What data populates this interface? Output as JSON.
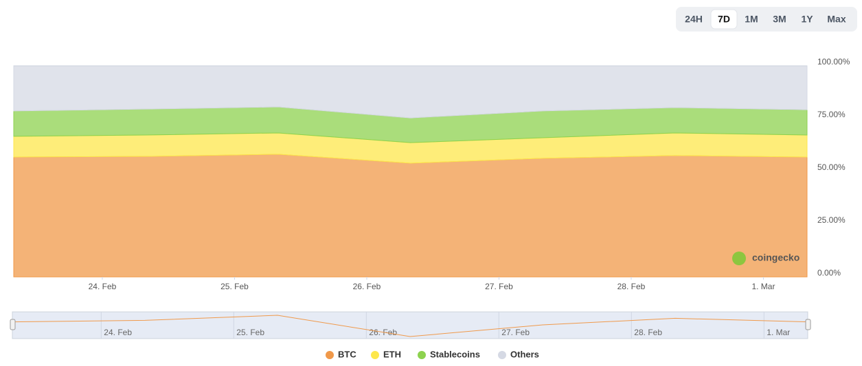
{
  "range_buttons": {
    "options": [
      "24H",
      "7D",
      "1M",
      "3M",
      "1Y",
      "Max"
    ],
    "selected_index": 1
  },
  "chart_data": {
    "type": "area",
    "stacked": true,
    "watermark": "coingecko",
    "x": [
      23.33,
      24.33,
      25.33,
      26.33,
      27.33,
      28.33,
      29.33
    ],
    "xlim": [
      23.33,
      29.33
    ],
    "xticks": [
      {
        "value": 24,
        "label": "24. Feb"
      },
      {
        "value": 25,
        "label": "25. Feb"
      },
      {
        "value": 26,
        "label": "26. Feb"
      },
      {
        "value": 27,
        "label": "27. Feb"
      },
      {
        "value": 28,
        "label": "28. Feb"
      },
      {
        "value": 29,
        "label": "1. Mar"
      }
    ],
    "ylim": [
      0,
      100
    ],
    "yticks": [
      {
        "value": 0,
        "label": "0.00%"
      },
      {
        "value": 25,
        "label": "25.00%"
      },
      {
        "value": 50,
        "label": "50.00%"
      },
      {
        "value": 75,
        "label": "75.00%"
      },
      {
        "value": 100,
        "label": "100.00%"
      }
    ],
    "series": [
      {
        "name": "BTC",
        "color": "#f0994a",
        "values": [
          56.8,
          57.1,
          58.1,
          53.9,
          56.2,
          57.5,
          56.8
        ]
      },
      {
        "name": "ETH",
        "color": "#fde74c",
        "values": [
          9.8,
          10.1,
          10.1,
          9.7,
          9.7,
          10.7,
          10.4
        ]
      },
      {
        "name": "Stablecoins",
        "color": "#8dd24f",
        "values": [
          12.0,
          12.3,
          12.3,
          11.7,
          12.7,
          12.0,
          12.0
        ]
      },
      {
        "name": "Others",
        "color": "#d5d9e4",
        "values": [
          21.4,
          20.5,
          19.5,
          24.7,
          21.4,
          19.8,
          20.8
        ]
      }
    ],
    "legend": "bottom"
  }
}
